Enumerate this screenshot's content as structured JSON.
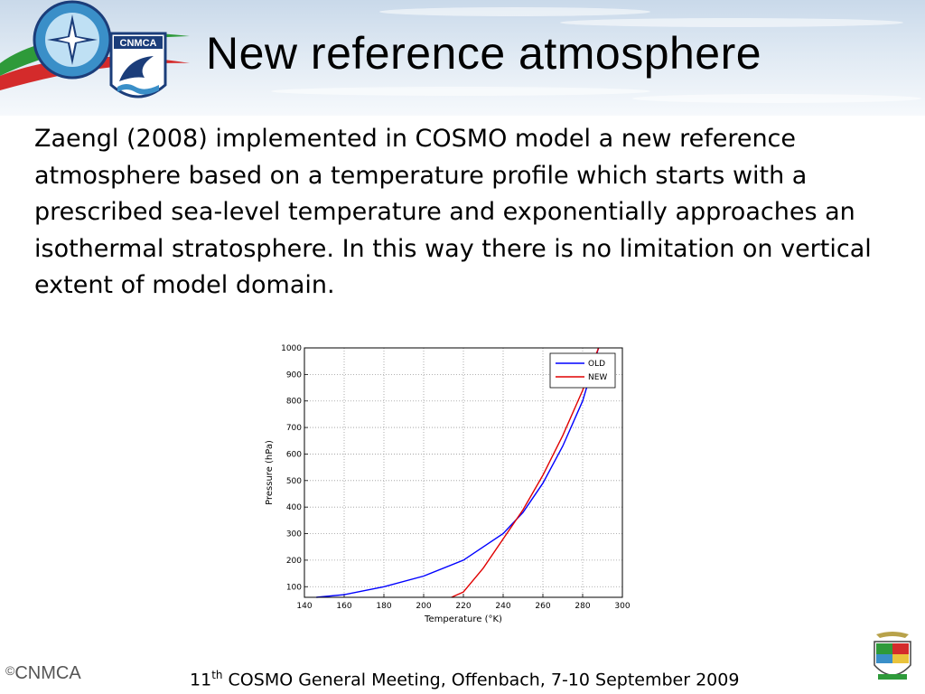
{
  "slide": {
    "title": "New reference atmosphere",
    "body": "Zaengl (2008) implemented in COSMO model a new reference atmosphere based on a temperature profile which starts with a prescribed sea-level temperature and exponentially approaches an isothermal stratosphere. In this way there is no limitation on vertical extent of model domain.",
    "logo_text": "CNMCA",
    "footer_logo_text": "CNMCA",
    "footer_logo_symbol": "©",
    "footer_meeting_num": "11",
    "footer_meeting_sup": "th",
    "footer_meeting_rest": " COSMO General Meeting, Offenbach,  7-10 September 2009"
  },
  "chart_data": {
    "type": "line",
    "title": "",
    "xlabel": "Temperature (°K)",
    "ylabel": "Pressure (hPa)",
    "xlim": [
      140,
      300
    ],
    "ylim": [
      1000,
      60
    ],
    "y_reversed": true,
    "grid": true,
    "legend_position": "top-right",
    "x_ticks": [
      140,
      160,
      180,
      200,
      220,
      240,
      260,
      280,
      300
    ],
    "y_ticks": [
      100,
      200,
      300,
      400,
      500,
      600,
      700,
      800,
      900,
      1000
    ],
    "series": [
      {
        "name": "OLD",
        "color": "#0000ff",
        "x": [
          146,
          160,
          180,
          200,
          220,
          240,
          250,
          260,
          270,
          280,
          288
        ],
        "y": [
          60,
          70,
          100,
          140,
          200,
          300,
          380,
          490,
          630,
          800,
          1000
        ]
      },
      {
        "name": "NEW",
        "color": "#e00000",
        "x": [
          214,
          220,
          230,
          240,
          250,
          260,
          270,
          280,
          288
        ],
        "y": [
          60,
          80,
          170,
          280,
          390,
          520,
          670,
          840,
          1000
        ]
      }
    ]
  },
  "colors": {
    "header_band": "#cddcec",
    "swoosh_green": "#2e9a3a",
    "swoosh_red": "#d42b2b",
    "emblem_blue": "#3a8fc8",
    "emblem_navy": "#1b3d7a"
  },
  "icons": {
    "emblem": "aeronautica-meteorological-service-emblem-icon",
    "cnmca_shield": "cnmca-shield-icon",
    "crest": "air-force-crest-icon"
  }
}
